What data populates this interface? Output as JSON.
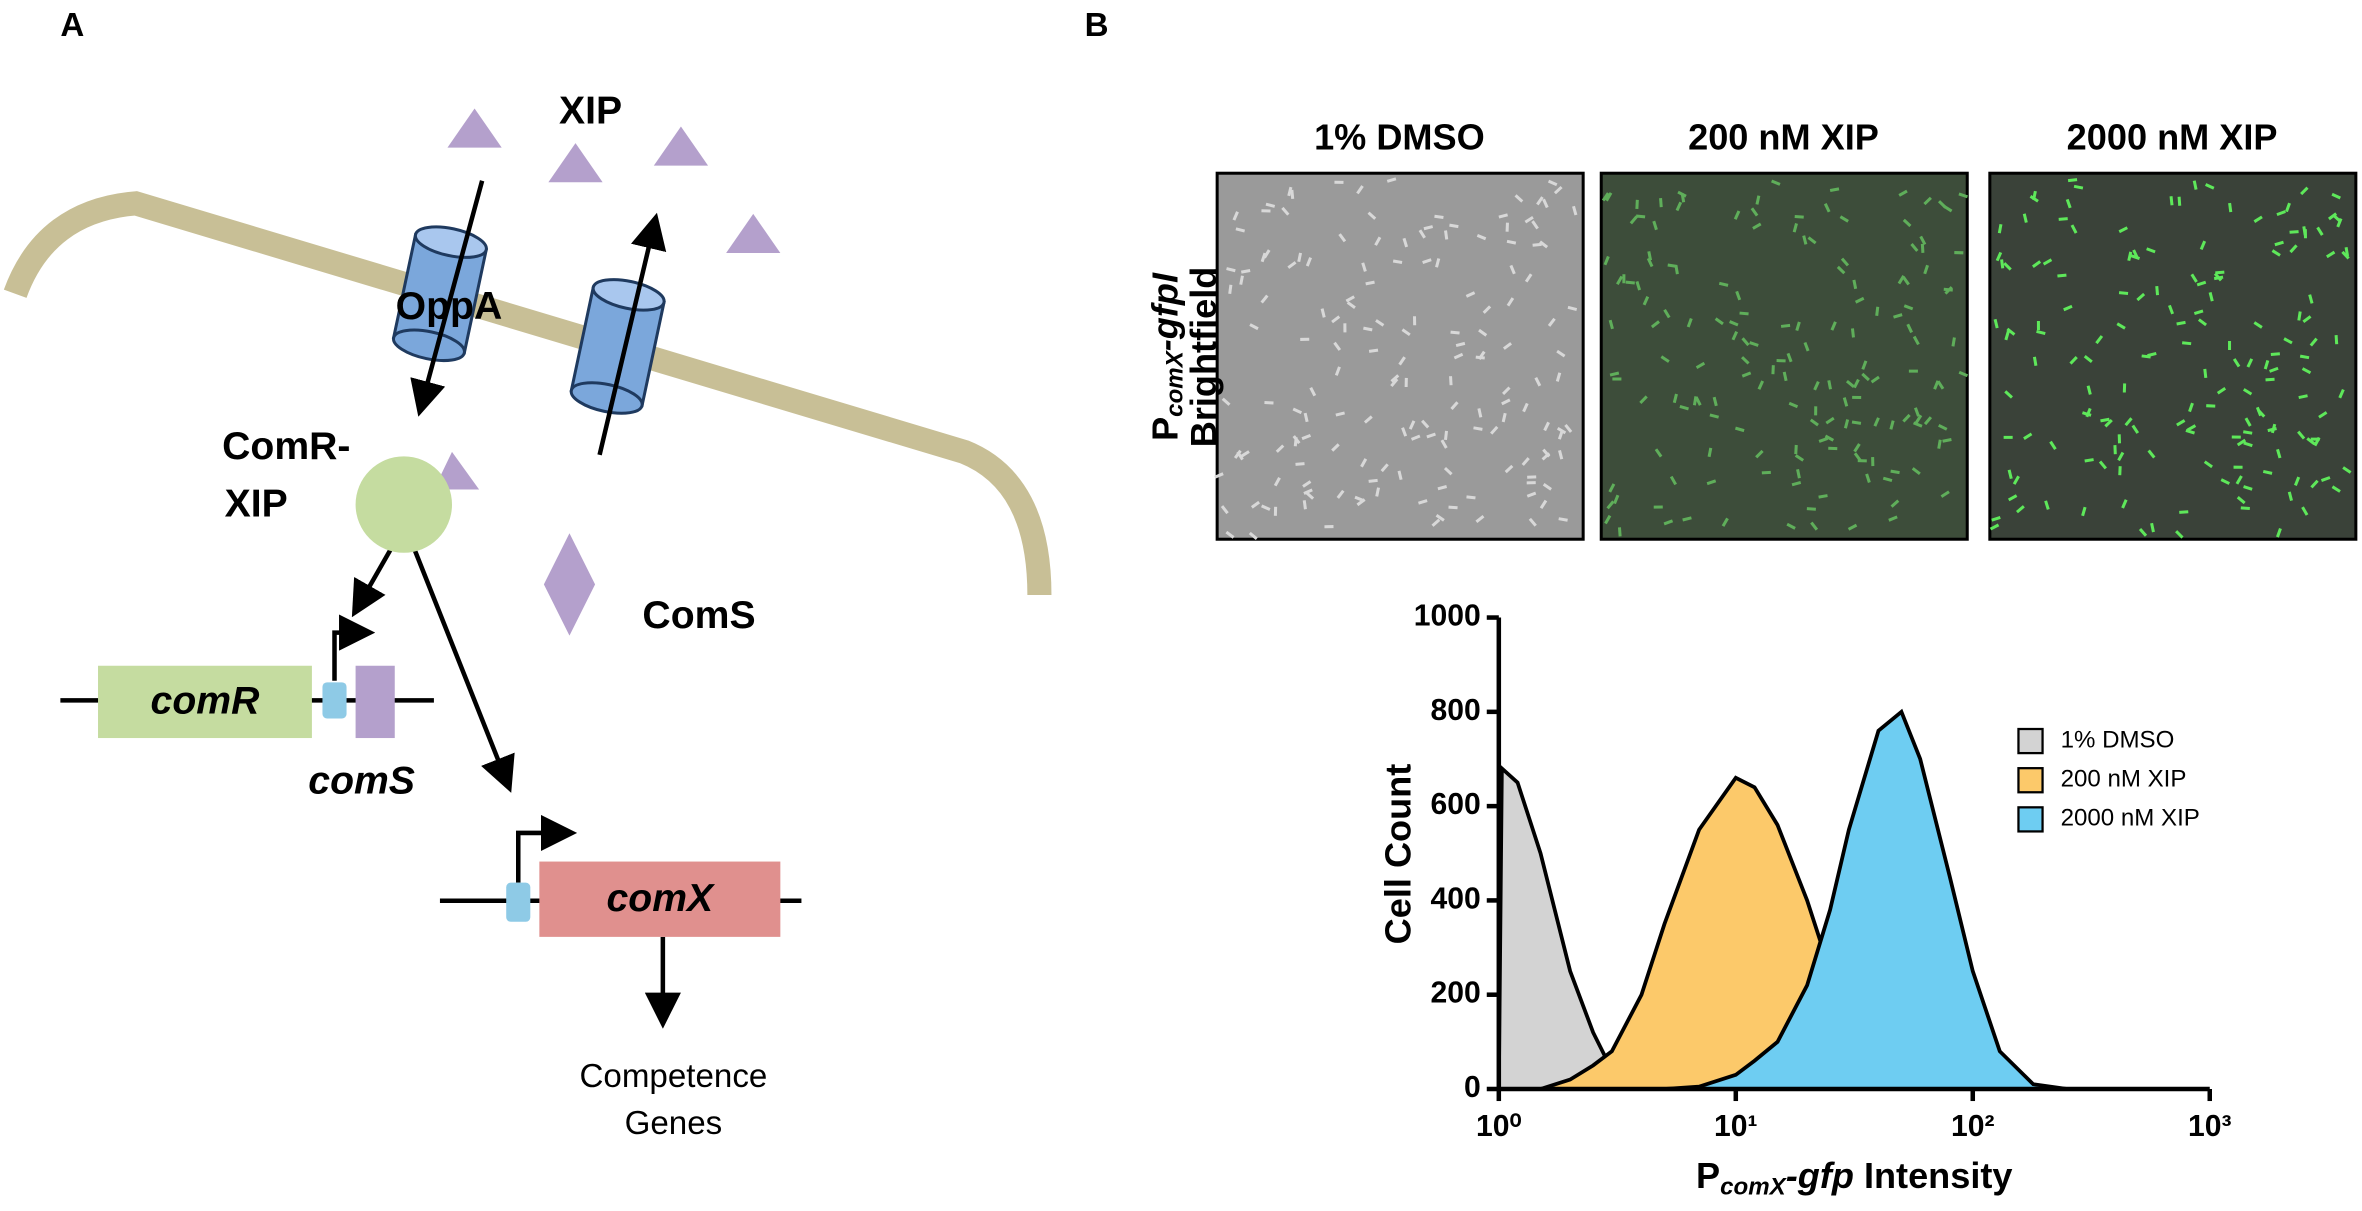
{
  "panel_a": {
    "label": "A",
    "xip": "XIP",
    "oppa": "OppA",
    "comr_xip": [
      "ComR-",
      "XIP"
    ],
    "coms_protein": "ComS",
    "genes": {
      "comr": "comR",
      "coms": "comS",
      "comx": "comX"
    },
    "output": [
      "Competence",
      "Genes"
    ]
  },
  "panel_b": {
    "label": "B",
    "images": [
      "1% DMSO",
      "200 nM XIP",
      "2000 nM XIP"
    ],
    "image_ylabel": {
      "parts": [
        "P",
        "comX",
        "-gfpI"
      ],
      "line2": "Brightfield"
    }
  },
  "chart_data": {
    "type": "area",
    "ylabel": "Cell Count",
    "xlabel_parts": [
      "P",
      "comX",
      "-gfp",
      " Intensity"
    ],
    "x": [
      1,
      1.03,
      1.2,
      1.5,
      2,
      2.5,
      3,
      4,
      5,
      7,
      10,
      12,
      15,
      20,
      25,
      30,
      40,
      50,
      60,
      80,
      100,
      130,
      180,
      250
    ],
    "series": [
      {
        "name": "1% DMSO",
        "color": "#d3d3d3",
        "values": [
          0,
          680,
          650,
          500,
          250,
          120,
          40,
          10,
          3,
          0,
          0,
          0,
          0,
          0,
          0,
          0,
          0,
          0,
          0,
          0,
          0,
          0,
          0,
          0
        ]
      },
      {
        "name": "200 nM XIP",
        "color": "#fcc96a",
        "values": [
          0,
          0,
          0,
          0,
          20,
          50,
          80,
          200,
          350,
          550,
          660,
          640,
          560,
          400,
          250,
          150,
          50,
          20,
          10,
          0,
          0,
          0,
          0,
          0
        ]
      },
      {
        "name": "2000 nM XIP",
        "color": "#6ecdf2",
        "values": [
          0,
          0,
          0,
          0,
          0,
          0,
          0,
          0,
          0,
          5,
          30,
          60,
          100,
          220,
          380,
          550,
          760,
          800,
          700,
          450,
          250,
          80,
          10,
          0
        ]
      }
    ],
    "xlim": [
      1,
      1000
    ],
    "xscale": "log",
    "xticks": [
      {
        "value": 1,
        "label": "10⁰"
      },
      {
        "value": 10,
        "label": "10¹"
      },
      {
        "value": 100,
        "label": "10²"
      },
      {
        "value": 1000,
        "label": "10³"
      }
    ],
    "ylim": [
      0,
      1000
    ],
    "yticks": [
      0,
      200,
      400,
      600,
      800,
      1000
    ],
    "legend": "right"
  }
}
